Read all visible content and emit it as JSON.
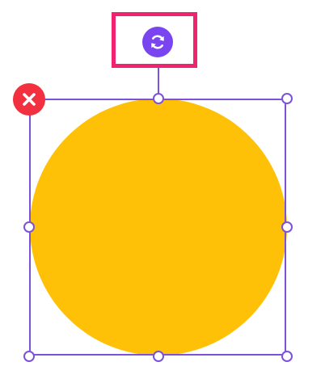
{
  "colors": {
    "shape_fill": "#FFC107",
    "selection": "#7B52D9",
    "highlight": "#F0246E",
    "rotate_button": "#7A44F0",
    "delete_button": "#F2303F",
    "icon": "#FFFFFF"
  },
  "icons": {
    "rotate": "rotate-icon",
    "delete": "close-icon"
  }
}
